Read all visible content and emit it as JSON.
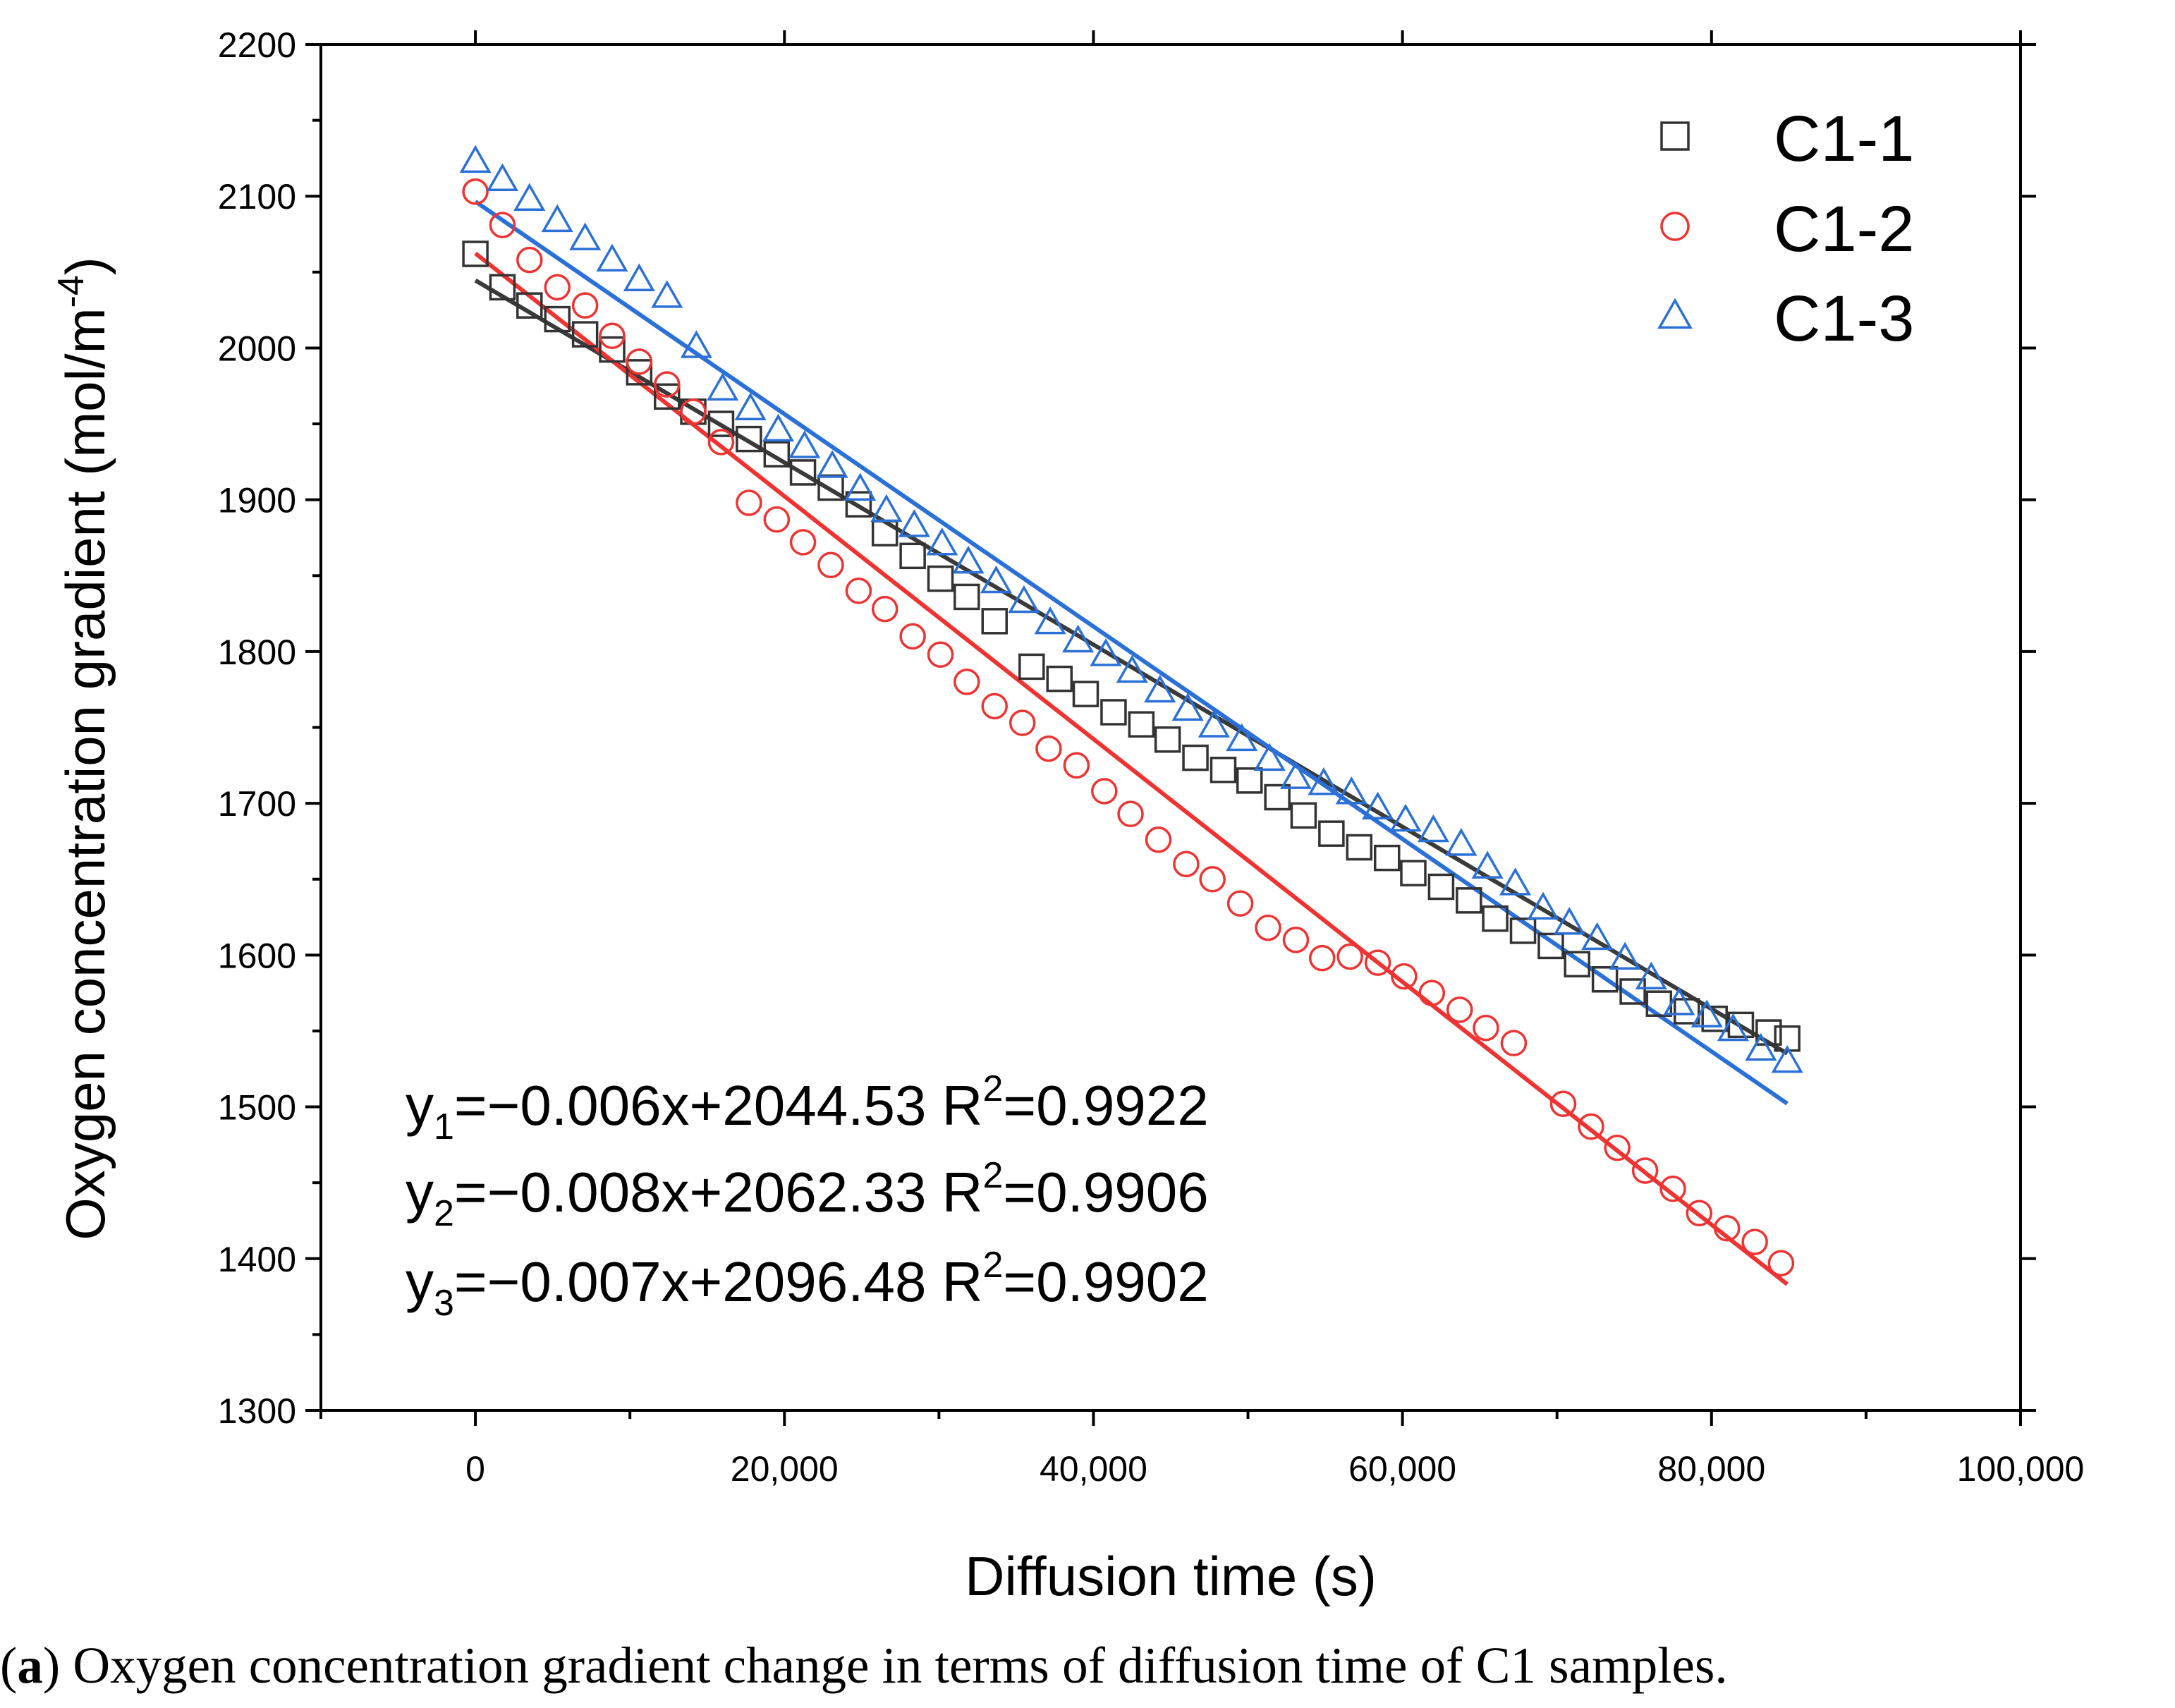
{
  "chart_data": {
    "type": "scatter",
    "xlabel": "Diffusion time (s)",
    "ylabel_main": "Oxygen concentration gradient (mol/m",
    "ylabel_sup": "-4",
    "ylabel_close": ")",
    "xlim": [
      -10000,
      100000
    ],
    "ylim": [
      1300,
      2200
    ],
    "x_ticks": [
      0,
      20000,
      40000,
      60000,
      80000,
      100000
    ],
    "x_tick_labels": [
      "0",
      "20,000",
      "40,000",
      "60,000",
      "80,000",
      "100,000"
    ],
    "y_ticks": [
      1300,
      1400,
      1500,
      1600,
      1700,
      1800,
      1900,
      2000,
      2100,
      2200
    ],
    "y_tick_labels": [
      "1300",
      "1400",
      "1500",
      "1600",
      "1700",
      "1800",
      "1900",
      "2000",
      "2100",
      "2200"
    ],
    "legend_position": "top-right",
    "series": [
      {
        "name": "C1-1",
        "marker": "square",
        "color": "#333333",
        "fit_color": "#3a3a3a",
        "fit": {
          "slope": -0.006,
          "intercept": 2044.53
        },
        "points": [
          [
            0,
            2062
          ],
          [
            1750,
            2040
          ],
          [
            3500,
            2028
          ],
          [
            5300,
            2019
          ],
          [
            7100,
            2009
          ],
          [
            8850,
            1999
          ],
          [
            10600,
            1984
          ],
          [
            12400,
            1968
          ],
          [
            14100,
            1958
          ],
          [
            15900,
            1950
          ],
          [
            17700,
            1940
          ],
          [
            19500,
            1930
          ],
          [
            21200,
            1918
          ],
          [
            23000,
            1908
          ],
          [
            24800,
            1897
          ],
          [
            26500,
            1878
          ],
          [
            28300,
            1863
          ],
          [
            30100,
            1848
          ],
          [
            31800,
            1836
          ],
          [
            33600,
            1820
          ],
          [
            36000,
            1790
          ],
          [
            37800,
            1782
          ],
          [
            39500,
            1772
          ],
          [
            41300,
            1760
          ],
          [
            43100,
            1752
          ],
          [
            44800,
            1742
          ],
          [
            46600,
            1730
          ],
          [
            48400,
            1722
          ],
          [
            50100,
            1715
          ],
          [
            51900,
            1704
          ],
          [
            53600,
            1692
          ],
          [
            55400,
            1680
          ],
          [
            57200,
            1671
          ],
          [
            59000,
            1664
          ],
          [
            60700,
            1654
          ],
          [
            62500,
            1645
          ],
          [
            64300,
            1636
          ],
          [
            66000,
            1624
          ],
          [
            67800,
            1616
          ],
          [
            69600,
            1606
          ],
          [
            71300,
            1594
          ],
          [
            73100,
            1584
          ],
          [
            74900,
            1576
          ],
          [
            76600,
            1568
          ],
          [
            78400,
            1563
          ],
          [
            80200,
            1558
          ],
          [
            81900,
            1554
          ],
          [
            83700,
            1549
          ],
          [
            84900,
            1545
          ]
        ]
      },
      {
        "name": "C1-2",
        "marker": "circle",
        "color": "#ee3333",
        "fit_color": "#ee3333",
        "fit": {
          "slope": -0.008,
          "intercept": 2062.33
        },
        "points": [
          [
            0,
            2103
          ],
          [
            1750,
            2081
          ],
          [
            3500,
            2058
          ],
          [
            5300,
            2040
          ],
          [
            7100,
            2028
          ],
          [
            8850,
            2008
          ],
          [
            10600,
            1991
          ],
          [
            12400,
            1976
          ],
          [
            14100,
            1958
          ],
          [
            15900,
            1938
          ],
          [
            17700,
            1898
          ],
          [
            19500,
            1887
          ],
          [
            21200,
            1872
          ],
          [
            23000,
            1857
          ],
          [
            24800,
            1840
          ],
          [
            26500,
            1828
          ],
          [
            28300,
            1810
          ],
          [
            30100,
            1798
          ],
          [
            31800,
            1780
          ],
          [
            33600,
            1764
          ],
          [
            35400,
            1753
          ],
          [
            37100,
            1736
          ],
          [
            38900,
            1725
          ],
          [
            40700,
            1708
          ],
          [
            42400,
            1693
          ],
          [
            44200,
            1676
          ],
          [
            46000,
            1660
          ],
          [
            47700,
            1650
          ],
          [
            49500,
            1634
          ],
          [
            51300,
            1618
          ],
          [
            53100,
            1610
          ],
          [
            54800,
            1598
          ],
          [
            56600,
            1599
          ],
          [
            58400,
            1595
          ],
          [
            60100,
            1586
          ],
          [
            61900,
            1575
          ],
          [
            63700,
            1564
          ],
          [
            65400,
            1552
          ],
          [
            67200,
            1542
          ],
          [
            70400,
            1502
          ],
          [
            72200,
            1487
          ],
          [
            73900,
            1473
          ],
          [
            75700,
            1458
          ],
          [
            77500,
            1446
          ],
          [
            79200,
            1430
          ],
          [
            81000,
            1420
          ],
          [
            82800,
            1411
          ],
          [
            84500,
            1397
          ]
        ]
      },
      {
        "name": "C1-3",
        "marker": "triangle",
        "color": "#2b70d6",
        "fit_color": "#2b70d6",
        "fit": {
          "slope": -0.007,
          "intercept": 2096.48
        },
        "points": [
          [
            0,
            2123
          ],
          [
            1750,
            2111
          ],
          [
            3500,
            2098
          ],
          [
            5300,
            2084
          ],
          [
            7100,
            2072
          ],
          [
            8850,
            2058
          ],
          [
            10600,
            2045
          ],
          [
            12400,
            2034
          ],
          [
            14300,
            2001
          ],
          [
            16000,
            1973
          ],
          [
            17800,
            1960
          ],
          [
            19600,
            1946
          ],
          [
            21300,
            1935
          ],
          [
            23100,
            1922
          ],
          [
            24900,
            1907
          ],
          [
            26600,
            1893
          ],
          [
            28400,
            1883
          ],
          [
            30200,
            1871
          ],
          [
            31900,
            1859
          ],
          [
            33700,
            1846
          ],
          [
            35500,
            1833
          ],
          [
            37200,
            1819
          ],
          [
            39000,
            1807
          ],
          [
            40800,
            1798
          ],
          [
            42500,
            1787
          ],
          [
            44300,
            1774
          ],
          [
            46100,
            1762
          ],
          [
            47800,
            1751
          ],
          [
            49600,
            1742
          ],
          [
            51400,
            1729
          ],
          [
            53100,
            1717
          ],
          [
            54900,
            1713
          ],
          [
            56700,
            1707
          ],
          [
            58400,
            1697
          ],
          [
            60200,
            1689
          ],
          [
            62000,
            1682
          ],
          [
            63800,
            1673
          ],
          [
            65500,
            1658
          ],
          [
            67300,
            1647
          ],
          [
            69100,
            1631
          ],
          [
            70800,
            1621
          ],
          [
            72600,
            1611
          ],
          [
            74400,
            1598
          ],
          [
            76100,
            1585
          ],
          [
            77900,
            1568
          ],
          [
            79700,
            1560
          ],
          [
            81400,
            1551
          ],
          [
            83200,
            1538
          ],
          [
            84900,
            1530
          ]
        ]
      }
    ],
    "equations": [
      {
        "y": "y",
        "sub": "1",
        "body": "=−0.006x+2044.53 R",
        "sup": "2",
        "tail": "=0.9922"
      },
      {
        "y": "y",
        "sub": "2",
        "body": "=−0.008x+2062.33 R",
        "sup": "2",
        "tail": "=0.9906"
      },
      {
        "y": "y",
        "sub": "3",
        "body": "=−0.007x+2096.48 R",
        "sup": "2",
        "tail": "=0.9902"
      }
    ]
  },
  "caption": {
    "open": "(",
    "tag": "a",
    "text": ") Oxygen concentration gradient change in terms of diffusion time of C1 samples."
  }
}
